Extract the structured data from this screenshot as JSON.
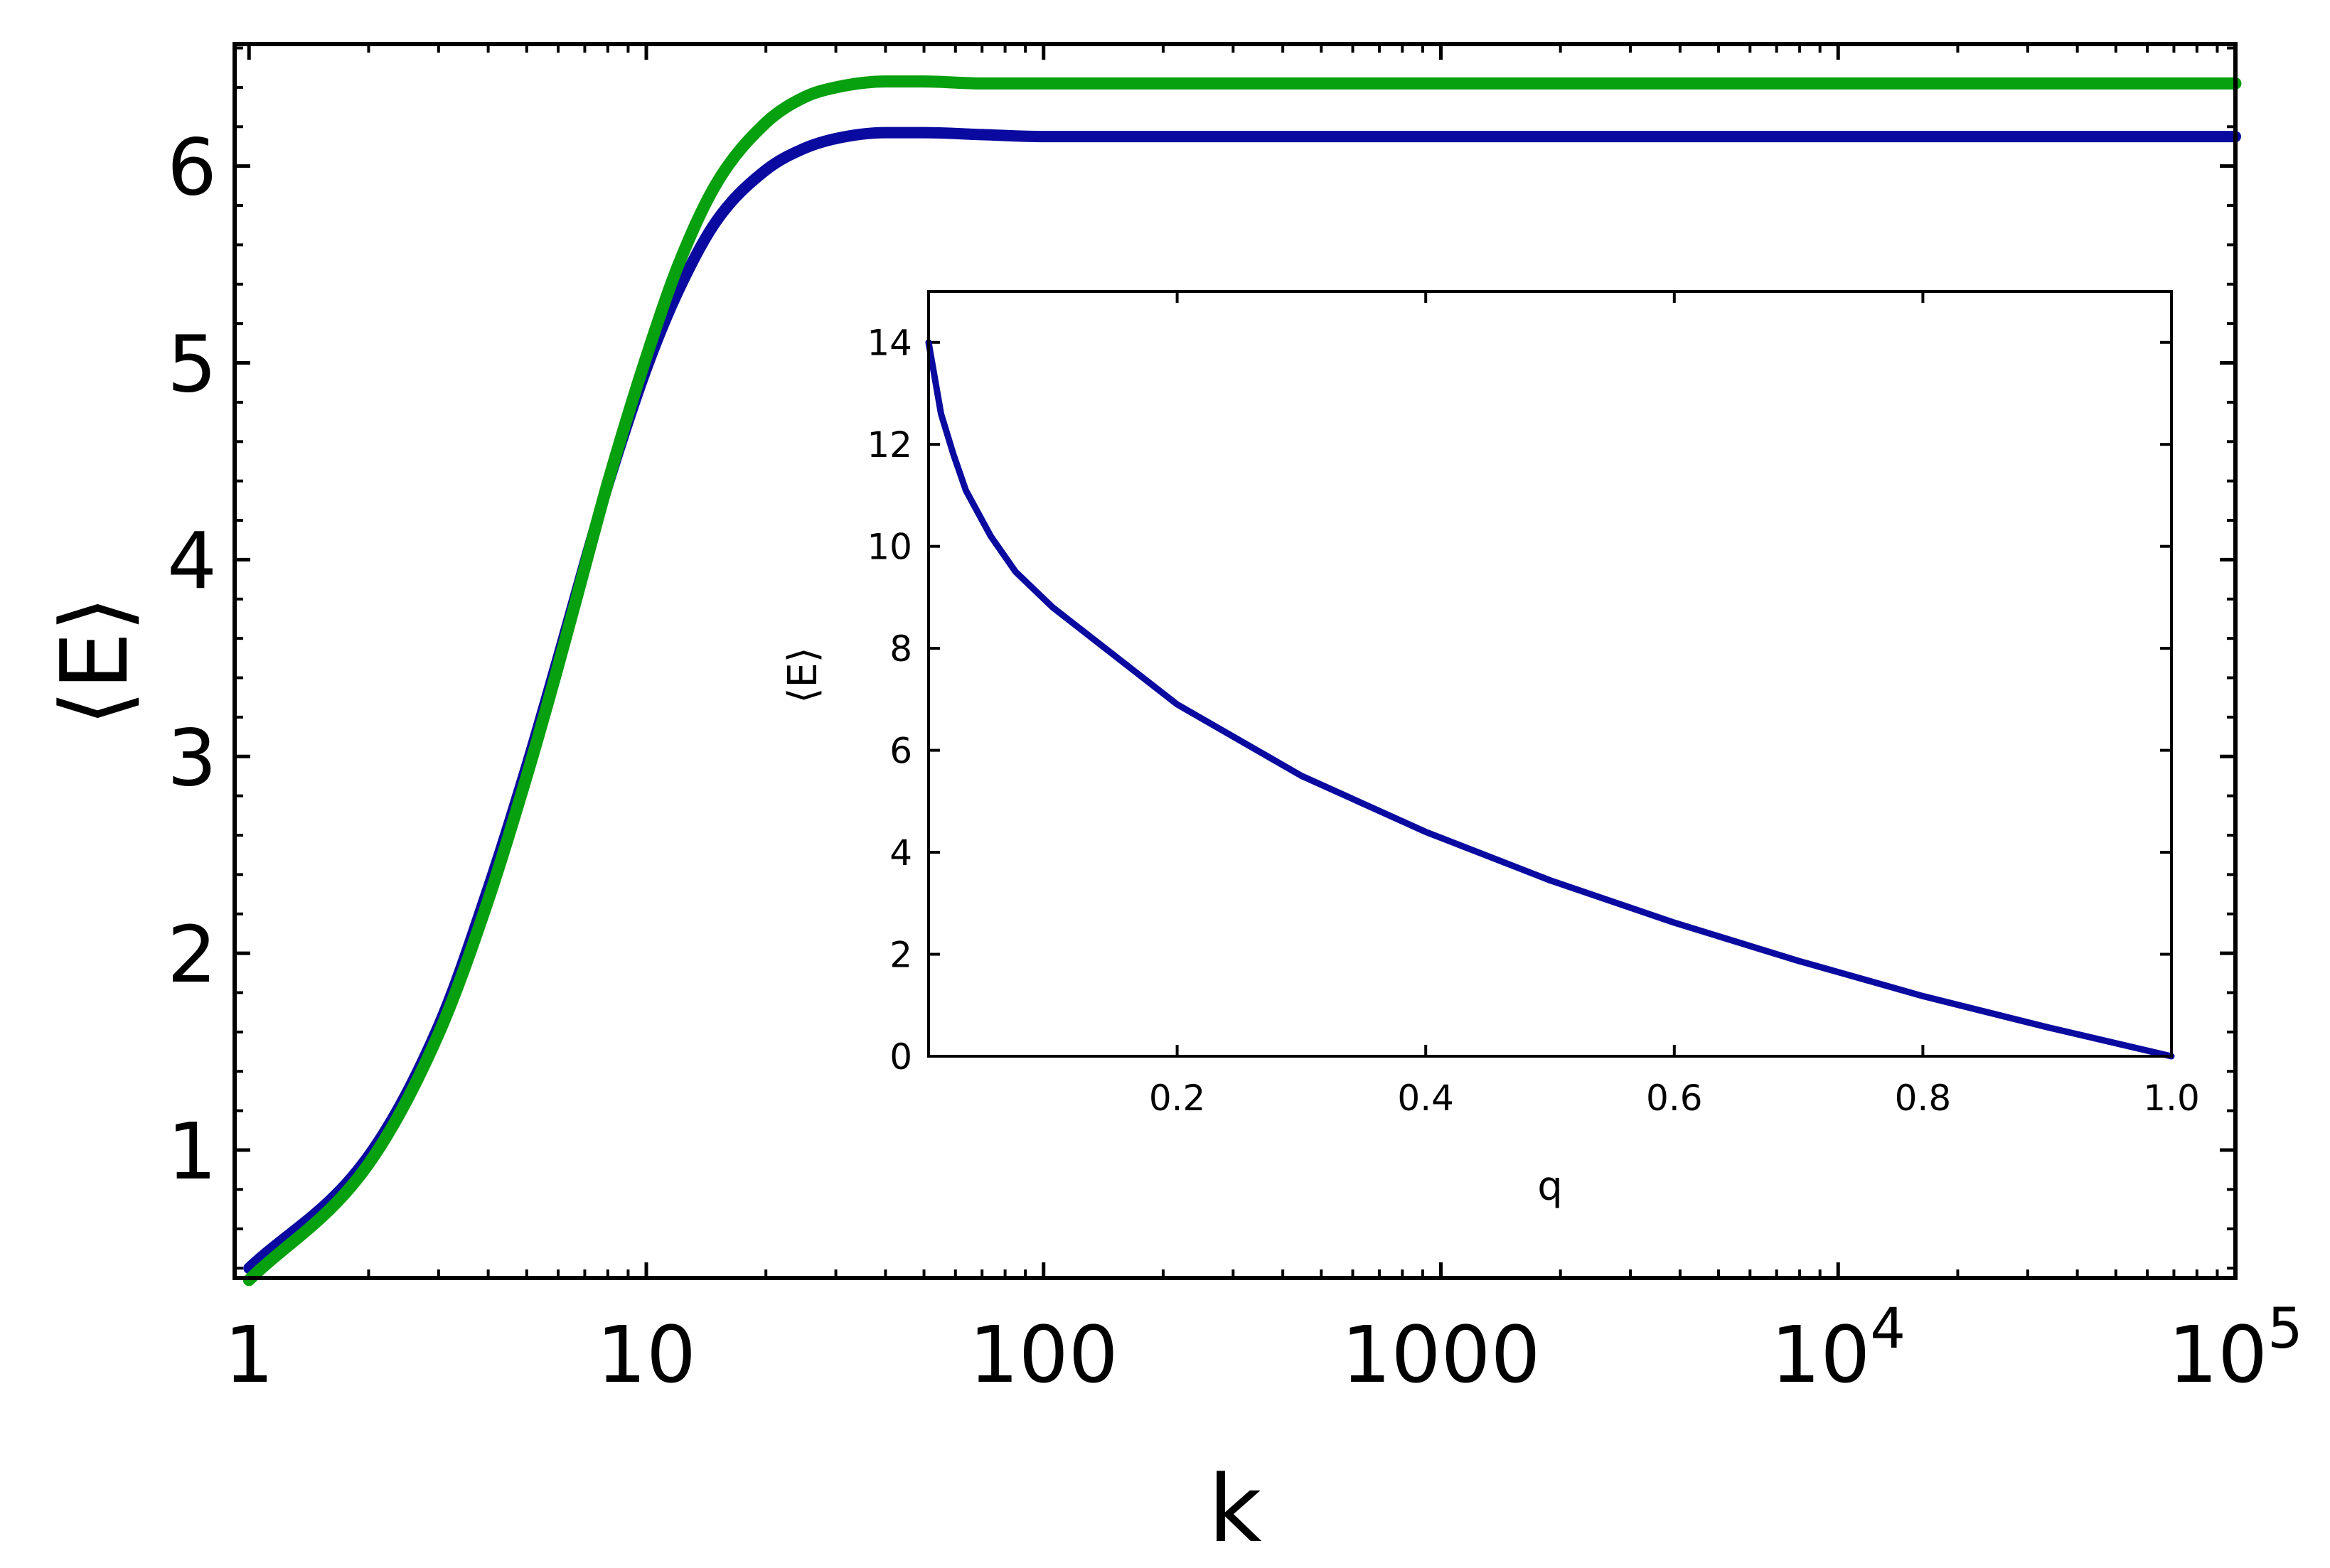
{
  "chart_data": [
    {
      "id": "main",
      "type": "line",
      "title": "",
      "xlabel": "k",
      "ylabel": "⟨E⟩",
      "xscale": "log",
      "xlim": [
        0.92,
        100000
      ],
      "ylim": [
        0.35,
        6.62
      ],
      "x_ticks": [
        {
          "value": 1,
          "base": "1",
          "exp": ""
        },
        {
          "value": 10,
          "base": "10",
          "exp": ""
        },
        {
          "value": 100,
          "base": "100",
          "exp": ""
        },
        {
          "value": 1000,
          "base": "1000",
          "exp": ""
        },
        {
          "value": 10000,
          "base": "10",
          "exp": "4"
        },
        {
          "value": 100000,
          "base": "10",
          "exp": "5"
        }
      ],
      "y_ticks": [
        {
          "value": 1,
          "label": "1"
        },
        {
          "value": 2,
          "label": "2"
        },
        {
          "value": 3,
          "label": "3"
        },
        {
          "value": 4,
          "label": "4"
        },
        {
          "value": 5,
          "label": "5"
        },
        {
          "value": 6,
          "label": "6"
        }
      ],
      "series": [
        {
          "name": "series-blue",
          "color": "#0a0aa0",
          "x": [
            1,
            2,
            3,
            4,
            5,
            6,
            7,
            8,
            10,
            12,
            15,
            20,
            25,
            30,
            40,
            50,
            70,
            100,
            200,
            500,
            1000,
            10000,
            100000
          ],
          "y": [
            0.4,
            0.97,
            1.63,
            2.33,
            2.95,
            3.5,
            3.98,
            4.38,
            4.97,
            5.36,
            5.72,
            5.98,
            6.09,
            6.14,
            6.17,
            6.17,
            6.16,
            6.15,
            6.15,
            6.15,
            6.15,
            6.15,
            6.15
          ]
        },
        {
          "name": "series-green",
          "color": "#07a00e",
          "x": [
            1,
            2,
            3,
            4,
            5,
            6,
            7,
            8,
            10,
            12,
            15,
            20,
            25,
            30,
            40,
            50,
            70,
            100,
            200,
            500,
            1000,
            10000,
            100000
          ],
          "y": [
            0.34,
            0.93,
            1.59,
            2.27,
            2.9,
            3.46,
            3.96,
            4.39,
            5.03,
            5.49,
            5.91,
            6.22,
            6.35,
            6.4,
            6.43,
            6.43,
            6.42,
            6.42,
            6.42,
            6.42,
            6.42,
            6.42,
            6.42
          ]
        }
      ]
    },
    {
      "id": "inset",
      "type": "line",
      "title": "",
      "xlabel": "q",
      "ylabel": "⟨E⟩",
      "xscale": "linear",
      "xlim": [
        0.0,
        1.0
      ],
      "ylim": [
        0,
        15
      ],
      "x_ticks": [
        {
          "value": 0.2,
          "label": "0.2"
        },
        {
          "value": 0.4,
          "label": "0.4"
        },
        {
          "value": 0.6,
          "label": "0.6"
        },
        {
          "value": 0.8,
          "label": "0.8"
        },
        {
          "value": 1.0,
          "label": "1.0"
        }
      ],
      "y_ticks": [
        {
          "value": 0,
          "label": "0"
        },
        {
          "value": 2,
          "label": "2"
        },
        {
          "value": 4,
          "label": "4"
        },
        {
          "value": 6,
          "label": "6"
        },
        {
          "value": 8,
          "label": "8"
        },
        {
          "value": 10,
          "label": "10"
        },
        {
          "value": 12,
          "label": "12"
        },
        {
          "value": 14,
          "label": "14"
        }
      ],
      "series": [
        {
          "name": "series-inset",
          "color": "#0a0aa0",
          "x": [
            0.0,
            0.01,
            0.02,
            0.03,
            0.05,
            0.07,
            0.1,
            0.2,
            0.3,
            0.4,
            0.5,
            0.6,
            0.7,
            0.8,
            0.9,
            1.0
          ],
          "y": [
            14.0,
            12.6,
            11.8,
            11.1,
            10.2,
            9.5,
            8.8,
            6.9,
            5.5,
            4.4,
            3.45,
            2.62,
            1.87,
            1.18,
            0.57,
            0.0
          ]
        }
      ]
    }
  ]
}
